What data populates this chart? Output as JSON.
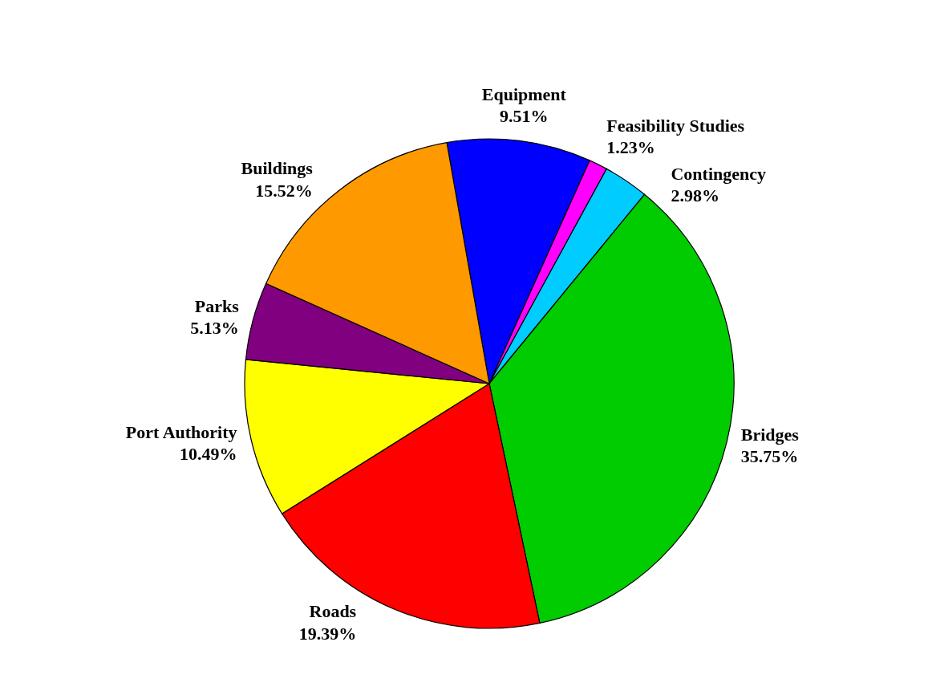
{
  "chart_data": {
    "type": "pie",
    "categories": [
      "Equipment",
      "Feasibility Studies",
      "Contingency",
      "Bridges",
      "Roads",
      "Port Authority",
      "Parks",
      "Buildings"
    ],
    "values": [
      9.51,
      1.23,
      2.98,
      35.75,
      19.39,
      10.49,
      5.13,
      15.52
    ],
    "value_labels": [
      "9.51%",
      "1.23%",
      "2.98%",
      "35.75%",
      "19.39%",
      "10.49%",
      "5.13%",
      "15.52%"
    ],
    "colors": [
      "#0000ff",
      "#ff00ff",
      "#00ccff",
      "#00cc00",
      "#ff0000",
      "#ffff00",
      "#800080",
      "#ff9900"
    ]
  }
}
